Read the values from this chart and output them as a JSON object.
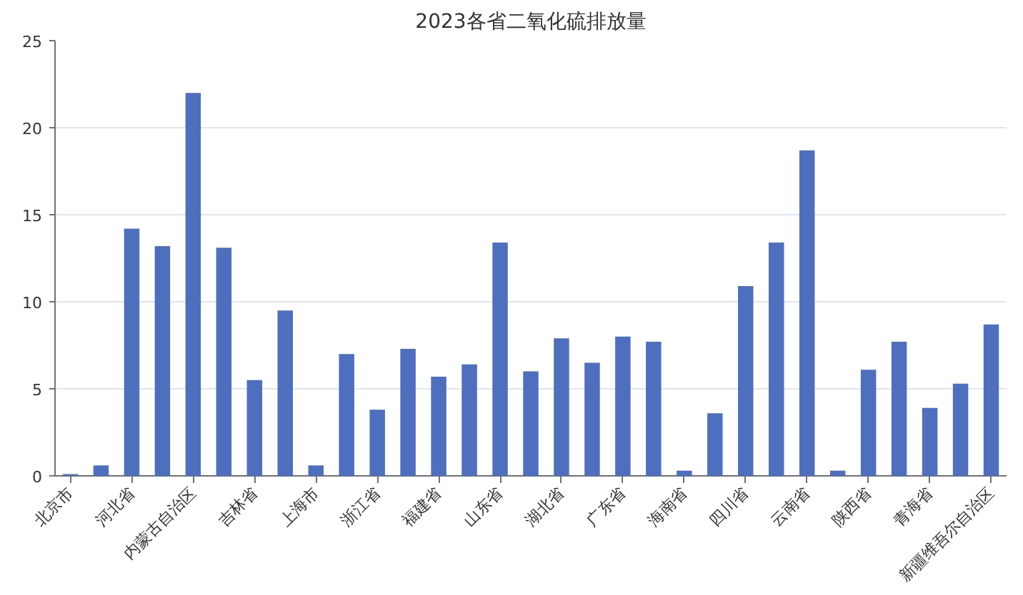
{
  "chart_data": {
    "type": "bar",
    "title": "2023各省二氧化硫排放量",
    "categories": [
      "北京市",
      null,
      "河北省",
      null,
      "内蒙古自治区",
      null,
      "吉林省",
      null,
      "上海市",
      null,
      "浙江省",
      null,
      "福建省",
      null,
      "山东省",
      null,
      "湖北省",
      null,
      "广东省",
      null,
      "海南省",
      null,
      "四川省",
      null,
      "云南省",
      null,
      "陕西省",
      null,
      "青海省",
      null,
      "新疆维吾尔自治区"
    ],
    "values": [
      0.1,
      0.6,
      14.2,
      13.2,
      22.0,
      13.1,
      5.5,
      9.5,
      0.6,
      7.0,
      3.8,
      7.3,
      5.7,
      6.4,
      13.4,
      6.0,
      7.9,
      6.5,
      8.0,
      7.7,
      0.3,
      3.6,
      10.9,
      13.4,
      18.7,
      0.3,
      6.1,
      7.7,
      3.9,
      5.3,
      8.7
    ],
    "color": "#4e6fbe",
    "ylim": [
      0,
      25
    ],
    "yticks": [
      0,
      5,
      10,
      15,
      20,
      25
    ],
    "grid": "y"
  }
}
